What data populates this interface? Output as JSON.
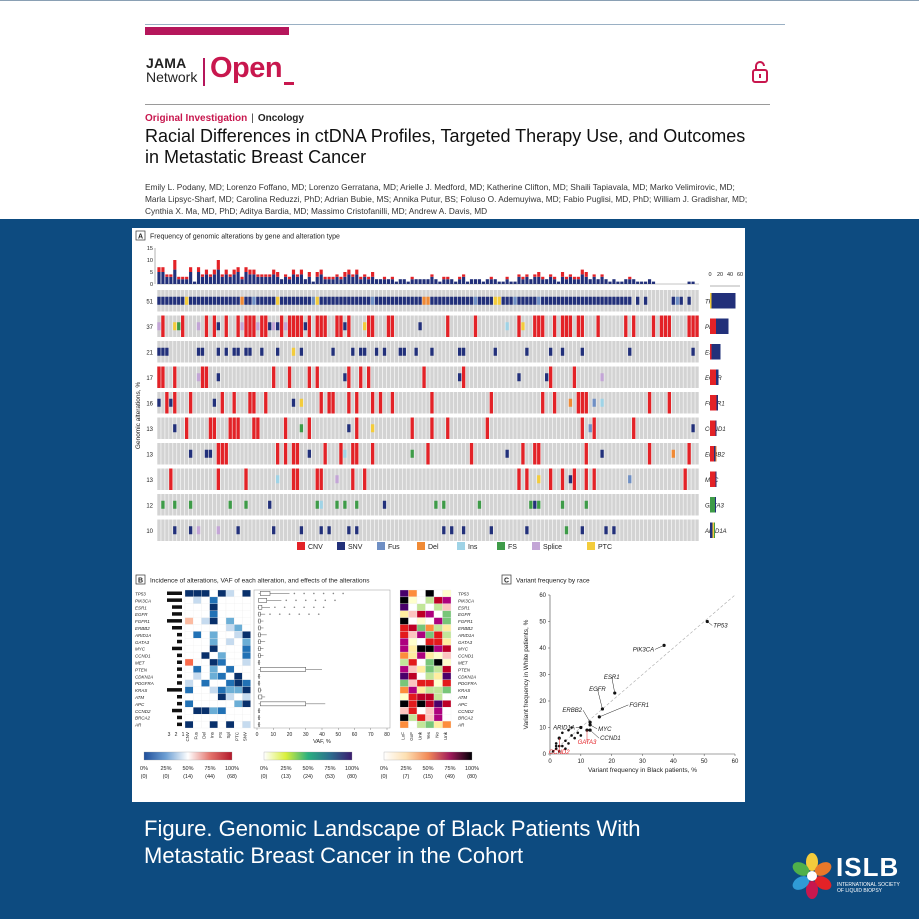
{
  "header": {
    "logo_jama": "JAMA",
    "logo_network": "Network",
    "logo_open": "Open",
    "section": "Original Investigation",
    "separator": "|",
    "topic": "Oncology",
    "title_line1": "Racial Differences in ctDNA Profiles, Targeted Therapy Use, and Outcomes",
    "title_line2": "in Metastatic Breast Cancer",
    "authors_line1": "Emily L. Podany, MD; Lorenzo Foffano, MD; Lorenzo Gerratana, MD; Arielle J. Medford, MD; Katherine Clifton, MD; Shaili Tapiavala, MD; Marko Velimirovic, MD;",
    "authors_line2": "Marla Lipsyc-Sharf, MD; Carolina Reduzzi, PhD; Adrian Bubie, MS; Annika Putur, BS; Foluso O. Ademuyiwa, MD; Fabio Puglisi, MD, PhD; William J. Gradishar, MD;",
    "authors_line3": "Cynthia X. Ma, MD, PhD; Aditya Bardia, MD; Massimo Cristofanilli, MD; Andrew A. Davis, MD",
    "lock_icon": "open-lock-icon"
  },
  "colors": {
    "brand": "#c8174e",
    "background": "#0d4b80",
    "cnv": "#e32227",
    "snv": "#22307a",
    "fus": "#6f8fc4",
    "del": "#f08a35",
    "ins": "#9fd3e6",
    "fs": "#3e9b48",
    "splice": "#c3a5d6",
    "ptc": "#f3cc3c"
  },
  "panelA": {
    "label": "A",
    "title": "Frequency of genomic alterations by gene and alteration type",
    "ylabel": "Genomic alterations, %",
    "top_ticks": [
      "15",
      "10",
      "5",
      "0"
    ],
    "side_ticks": [
      "0",
      "20",
      "40",
      "60"
    ],
    "rows": [
      {
        "gene": "TP53",
        "pct": "51"
      },
      {
        "gene": "PIK3CA",
        "pct": "37"
      },
      {
        "gene": "ESR1",
        "pct": "21"
      },
      {
        "gene": "EGFR",
        "pct": "17"
      },
      {
        "gene": "FGFR1",
        "pct": "16"
      },
      {
        "gene": "CCND1",
        "pct": "13"
      },
      {
        "gene": "ERBB2",
        "pct": "13"
      },
      {
        "gene": "MYC",
        "pct": "13"
      },
      {
        "gene": "GATA3",
        "pct": "12"
      },
      {
        "gene": "ARID1A",
        "pct": "10"
      }
    ],
    "legend": [
      "CNV",
      "SNV",
      "Fus",
      "Del",
      "Ins",
      "FS",
      "Splice",
      "PTC"
    ]
  },
  "panelB": {
    "label": "B",
    "title": "Incidence of alterations, VAF of each alteration, and effects of the alterations",
    "genes": [
      "TP53",
      "PIK3CA",
      "ESR1",
      "EGFR",
      "FGFR1",
      "ERBB2",
      "ARID1A",
      "GATA3",
      "MYC",
      "CCND1",
      "MET",
      "PTEN",
      "CDKN2A",
      "PDGFRA",
      "KRAS",
      "ATM",
      "APC",
      "CCND2",
      "BRCA2",
      "AR"
    ],
    "count_ticks": [
      "3",
      "2",
      "1"
    ],
    "type_cols": [
      "CNV",
      "Fus",
      "Del",
      "Ins",
      "FS",
      "Spl",
      "PTC",
      "SNV"
    ],
    "vaf_ticks": [
      "0",
      "10",
      "20",
      "30",
      "40",
      "50",
      "60",
      "70",
      "80"
    ],
    "vaf_label": "VAF, %",
    "effect_cols": [
      "LoF",
      "GoF",
      "Unk",
      "Yes",
      "No",
      "Unk"
    ],
    "scale1": {
      "ticks": [
        "0%",
        "25%",
        "50%",
        "75%",
        "100%"
      ],
      "counts": [
        "(0)",
        "(0)",
        "(14)",
        "(44)",
        "(68)"
      ]
    },
    "scale2": {
      "ticks": [
        "0%",
        "25%",
        "50%",
        "75%",
        "100%"
      ],
      "counts": [
        "(0)",
        "(13)",
        "(24)",
        "(53)",
        "(80)"
      ]
    },
    "scale3": {
      "ticks": [
        "0%",
        "25%",
        "50%",
        "75%",
        "100%"
      ],
      "counts": [
        "(0)",
        "(7)",
        "(15)",
        "(49)",
        "(80)"
      ]
    }
  },
  "panelC": {
    "label": "C",
    "title": "Variant frequency by race",
    "ylabel": "Variant frequency in White patients, %",
    "xlabel": "Variant frequency in Black patients, %",
    "x_ticks": [
      "0",
      "10",
      "20",
      "30",
      "40",
      "50",
      "60"
    ],
    "y_ticks": [
      "0",
      "10",
      "20",
      "30",
      "40",
      "50",
      "60"
    ],
    "labels": [
      {
        "name": "TP53",
        "color": "#222"
      },
      {
        "name": "PIK3CA",
        "color": "#222"
      },
      {
        "name": "ESR1",
        "color": "#222"
      },
      {
        "name": "EGFR",
        "color": "#222"
      },
      {
        "name": "FGFR1",
        "color": "#222"
      },
      {
        "name": "ERBB2",
        "color": "#222"
      },
      {
        "name": "MYC",
        "color": "#222"
      },
      {
        "name": "ARID1A",
        "color": "#222"
      },
      {
        "name": "CCND1",
        "color": "#222"
      },
      {
        "name": "GATA3",
        "color": "#e32227"
      },
      {
        "name": "CCND2",
        "color": "#e32227"
      }
    ]
  },
  "chart_data": {
    "type": "scatter",
    "title": "Variant frequency by race",
    "xlabel": "Variant frequency in Black patients, %",
    "ylabel": "Variant frequency in White patients, %",
    "xlim": [
      0,
      60
    ],
    "ylim": [
      0,
      60
    ],
    "points": [
      {
        "label": "TP53",
        "x": 51,
        "y": 50
      },
      {
        "label": "PIK3CA",
        "x": 37,
        "y": 41
      },
      {
        "label": "ESR1",
        "x": 21,
        "y": 23
      },
      {
        "label": "EGFR",
        "x": 17,
        "y": 17
      },
      {
        "label": "FGFR1",
        "x": 16,
        "y": 14
      },
      {
        "label": "ERBB2",
        "x": 13,
        "y": 12
      },
      {
        "label": "MYC",
        "x": 13,
        "y": 11
      },
      {
        "label": "CCND1",
        "x": 13,
        "y": 9
      },
      {
        "label": "GATA3",
        "x": 12,
        "y": 9
      },
      {
        "label": "ARID1A",
        "x": 10,
        "y": 10
      },
      {
        "label": "CCND2",
        "x": 3,
        "y": 6
      }
    ],
    "cluster": [
      [
        2,
        2
      ],
      [
        3,
        1
      ],
      [
        2,
        4
      ],
      [
        4,
        3
      ],
      [
        5,
        5
      ],
      [
        3,
        6
      ],
      [
        6,
        4
      ],
      [
        7,
        7
      ],
      [
        8,
        6
      ],
      [
        4,
        8
      ],
      [
        1,
        1
      ],
      [
        2,
        3
      ],
      [
        9,
        8
      ],
      [
        6,
        9
      ],
      [
        5,
        2
      ],
      [
        3,
        3
      ],
      [
        10,
        7
      ],
      [
        7,
        10
      ]
    ]
  },
  "caption": {
    "line1": "Figure.  Genomic Landscape of Black Patients With",
    "line2": "Metastatic Breast Cancer in the Cohort"
  },
  "islb": {
    "name": "ISLB",
    "sub1": "INTERNATIONAL SOCIETY",
    "sub2": "OF LIQUID BIOPSY"
  }
}
